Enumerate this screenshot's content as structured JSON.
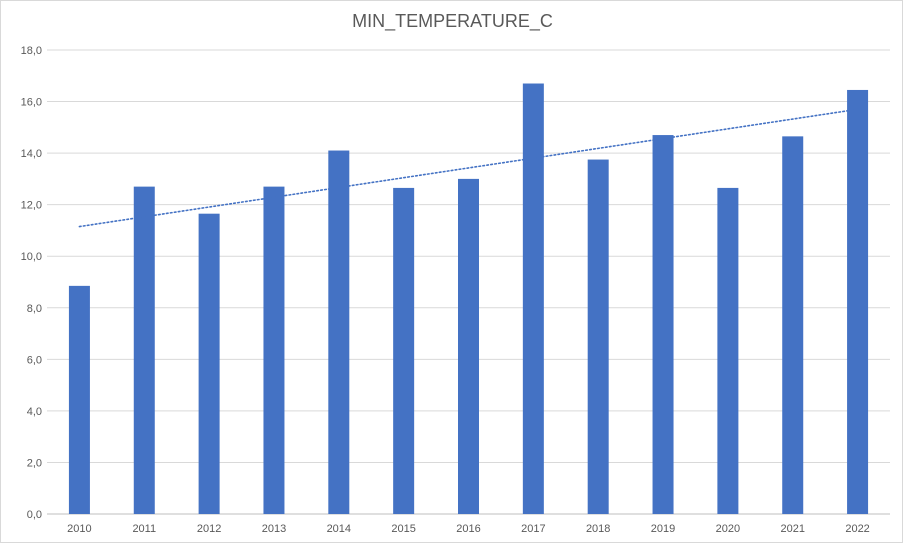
{
  "chart_data": {
    "type": "bar",
    "title": "MIN_TEMPERATURE_C",
    "xlabel": "",
    "ylabel": "",
    "categories": [
      "2010",
      "2011",
      "2012",
      "2013",
      "2014",
      "2015",
      "2016",
      "2017",
      "2018",
      "2019",
      "2020",
      "2021",
      "2022"
    ],
    "values": [
      8.85,
      12.7,
      11.65,
      12.7,
      14.1,
      12.65,
      13.0,
      16.7,
      13.75,
      14.7,
      12.65,
      14.65,
      16.45
    ],
    "ylim": [
      0,
      18
    ],
    "y_ticks": [
      "0,0",
      "2,0",
      "4,0",
      "6,0",
      "8,0",
      "10,0",
      "12,0",
      "14,0",
      "16,0",
      "18,0"
    ],
    "grid": true,
    "legend": "none",
    "trendline": {
      "type": "linear",
      "style": "dotted",
      "start_value": 11.15,
      "end_value": 15.7
    },
    "colors": {
      "bar": "#4472C4",
      "trendline": "#4472C4",
      "grid": "#d9d9d9",
      "axis": "#bfbfbf",
      "text": "#595959"
    }
  }
}
